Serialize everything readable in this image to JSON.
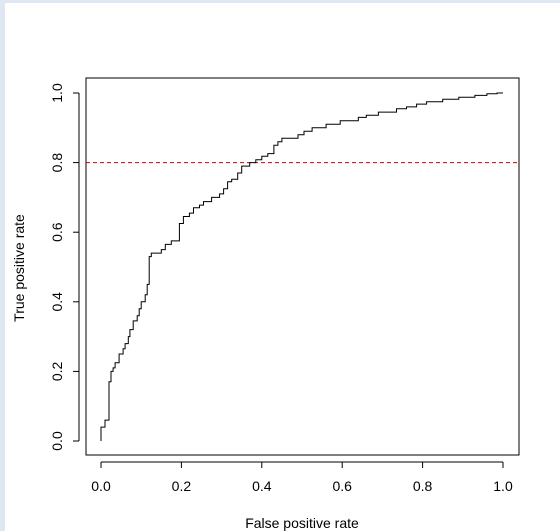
{
  "chart_data": {
    "type": "line",
    "title": "",
    "xlabel": "False positive rate",
    "ylabel": "True positive rate",
    "xlim": [
      0.0,
      1.0
    ],
    "ylim": [
      0.0,
      1.0
    ],
    "x_ticks": [
      "0.0",
      "0.2",
      "0.4",
      "0.6",
      "0.8",
      "1.0"
    ],
    "y_ticks": [
      "0.0",
      "0.2",
      "0.4",
      "0.6",
      "0.8",
      "1.0"
    ],
    "grid": false,
    "legend": "none",
    "series": [
      {
        "style": "step",
        "color": "#000000",
        "points": [
          [
            0.0,
            0.0
          ],
          [
            0.0,
            0.04
          ],
          [
            0.01,
            0.04
          ],
          [
            0.01,
            0.06
          ],
          [
            0.02,
            0.06
          ],
          [
            0.02,
            0.17
          ],
          [
            0.025,
            0.17
          ],
          [
            0.025,
            0.2
          ],
          [
            0.03,
            0.2
          ],
          [
            0.03,
            0.21
          ],
          [
            0.035,
            0.21
          ],
          [
            0.035,
            0.225
          ],
          [
            0.045,
            0.225
          ],
          [
            0.045,
            0.25
          ],
          [
            0.055,
            0.25
          ],
          [
            0.055,
            0.265
          ],
          [
            0.06,
            0.265
          ],
          [
            0.06,
            0.28
          ],
          [
            0.068,
            0.28
          ],
          [
            0.068,
            0.3
          ],
          [
            0.072,
            0.3
          ],
          [
            0.072,
            0.32
          ],
          [
            0.08,
            0.32
          ],
          [
            0.08,
            0.345
          ],
          [
            0.09,
            0.345
          ],
          [
            0.09,
            0.36
          ],
          [
            0.095,
            0.36
          ],
          [
            0.095,
            0.38
          ],
          [
            0.1,
            0.38
          ],
          [
            0.1,
            0.4
          ],
          [
            0.11,
            0.4
          ],
          [
            0.11,
            0.42
          ],
          [
            0.115,
            0.42
          ],
          [
            0.115,
            0.45
          ],
          [
            0.12,
            0.45
          ],
          [
            0.12,
            0.53
          ],
          [
            0.125,
            0.53
          ],
          [
            0.125,
            0.54
          ],
          [
            0.15,
            0.54
          ],
          [
            0.15,
            0.55
          ],
          [
            0.16,
            0.55
          ],
          [
            0.16,
            0.565
          ],
          [
            0.175,
            0.565
          ],
          [
            0.175,
            0.575
          ],
          [
            0.195,
            0.575
          ],
          [
            0.195,
            0.625
          ],
          [
            0.205,
            0.625
          ],
          [
            0.205,
            0.645
          ],
          [
            0.22,
            0.645
          ],
          [
            0.22,
            0.655
          ],
          [
            0.23,
            0.655
          ],
          [
            0.23,
            0.67
          ],
          [
            0.245,
            0.67
          ],
          [
            0.245,
            0.678
          ],
          [
            0.255,
            0.678
          ],
          [
            0.255,
            0.688
          ],
          [
            0.275,
            0.688
          ],
          [
            0.275,
            0.7
          ],
          [
            0.295,
            0.7
          ],
          [
            0.295,
            0.71
          ],
          [
            0.305,
            0.71
          ],
          [
            0.305,
            0.725
          ],
          [
            0.315,
            0.725
          ],
          [
            0.315,
            0.745
          ],
          [
            0.325,
            0.745
          ],
          [
            0.325,
            0.752
          ],
          [
            0.34,
            0.752
          ],
          [
            0.34,
            0.77
          ],
          [
            0.35,
            0.77
          ],
          [
            0.35,
            0.79
          ],
          [
            0.37,
            0.79
          ],
          [
            0.37,
            0.8
          ],
          [
            0.385,
            0.8
          ],
          [
            0.385,
            0.808
          ],
          [
            0.4,
            0.808
          ],
          [
            0.4,
            0.818
          ],
          [
            0.415,
            0.818
          ],
          [
            0.415,
            0.826
          ],
          [
            0.43,
            0.826
          ],
          [
            0.43,
            0.85
          ],
          [
            0.44,
            0.85
          ],
          [
            0.44,
            0.86
          ],
          [
            0.45,
            0.86
          ],
          [
            0.45,
            0.87
          ],
          [
            0.49,
            0.87
          ],
          [
            0.49,
            0.88
          ],
          [
            0.505,
            0.88
          ],
          [
            0.505,
            0.89
          ],
          [
            0.525,
            0.89
          ],
          [
            0.525,
            0.9
          ],
          [
            0.56,
            0.9
          ],
          [
            0.56,
            0.91
          ],
          [
            0.595,
            0.91
          ],
          [
            0.595,
            0.92
          ],
          [
            0.64,
            0.92
          ],
          [
            0.64,
            0.93
          ],
          [
            0.66,
            0.93
          ],
          [
            0.66,
            0.936
          ],
          [
            0.69,
            0.936
          ],
          [
            0.69,
            0.945
          ],
          [
            0.735,
            0.945
          ],
          [
            0.735,
            0.955
          ],
          [
            0.76,
            0.955
          ],
          [
            0.76,
            0.96
          ],
          [
            0.785,
            0.96
          ],
          [
            0.785,
            0.968
          ],
          [
            0.81,
            0.968
          ],
          [
            0.81,
            0.975
          ],
          [
            0.85,
            0.975
          ],
          [
            0.85,
            0.982
          ],
          [
            0.89,
            0.982
          ],
          [
            0.89,
            0.988
          ],
          [
            0.93,
            0.988
          ],
          [
            0.93,
            0.993
          ],
          [
            0.96,
            0.993
          ],
          [
            0.96,
            0.998
          ],
          [
            0.985,
            0.998
          ],
          [
            0.985,
            1.0
          ],
          [
            1.0,
            1.0
          ]
        ]
      }
    ],
    "reference_lines": [
      {
        "orientation": "horizontal",
        "y": 0.8,
        "style": "dashed",
        "color": "#cc0000"
      }
    ]
  }
}
